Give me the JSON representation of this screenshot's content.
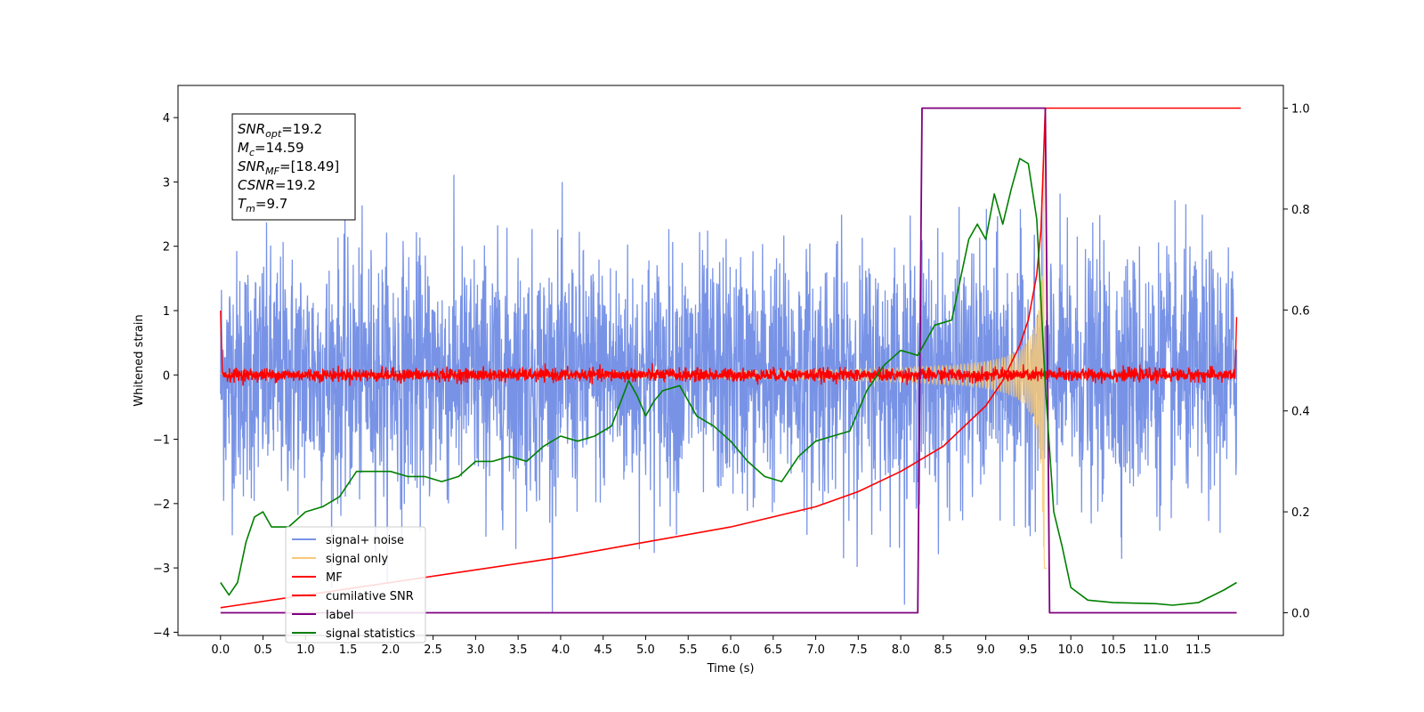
{
  "chart_data": {
    "type": "line",
    "title": "",
    "xlabel": "Time (s)",
    "ylabel": "Whitened strain",
    "xlim": [
      -0.5,
      12.5
    ],
    "ylim": [
      -4.05,
      4.5
    ],
    "y2lim": [
      -0.045,
      1.045
    ],
    "xticks": [
      "0.0",
      "0.5",
      "1.0",
      "1.5",
      "2.0",
      "2.5",
      "3.0",
      "3.5",
      "4.0",
      "4.5",
      "5.0",
      "5.5",
      "6.0",
      "6.5",
      "7.0",
      "7.5",
      "8.0",
      "8.5",
      "9.0",
      "9.5",
      "10.0",
      "10.5",
      "11.0",
      "11.5"
    ],
    "yticks": [
      "4",
      "3",
      "2",
      "1",
      "0",
      "−1",
      "−2",
      "−3",
      "−4"
    ],
    "y2ticks": [
      "1.0",
      "0.8",
      "0.6",
      "0.4",
      "0.2",
      "0.0"
    ],
    "grid": false,
    "legend_position": "lower-left",
    "annotation_lines": [
      {
        "sym": "SNR",
        "sub": "opt",
        "val": "=19.2"
      },
      {
        "sym": "M",
        "sub": "c",
        "val": "=14.59"
      },
      {
        "sym": "SNR",
        "sub": "MF",
        "val": "=[18.49]"
      },
      {
        "sym": "CSNR",
        "sub": "",
        "val": "=19.2"
      },
      {
        "sym": "T",
        "sub": "m",
        "val": "=9.7"
      }
    ],
    "series": [
      {
        "name": "signal+ noise",
        "color": "#7893e6",
        "description": "white noise, std ~1"
      },
      {
        "name": "signal only",
        "color": "#f6c978",
        "chirp_merger_time": 9.7,
        "peak_amplitude": 3.6
      },
      {
        "name": "MF",
        "color": "#ff0000",
        "baseline": 0.0,
        "noise": 0.05
      },
      {
        "name": "cumilative SNR",
        "color": "#ff0000",
        "axis": "right",
        "x": [
          0.0,
          1.0,
          2.0,
          3.0,
          4.0,
          5.0,
          6.0,
          7.0,
          7.5,
          8.0,
          8.5,
          9.0,
          9.2,
          9.4,
          9.5,
          9.6,
          9.65,
          9.7,
          12.0
        ],
        "y": [
          0.01,
          0.035,
          0.06,
          0.085,
          0.11,
          0.14,
          0.17,
          0.21,
          0.24,
          0.28,
          0.33,
          0.41,
          0.46,
          0.53,
          0.58,
          0.67,
          0.76,
          1.0,
          1.0
        ]
      },
      {
        "name": "label",
        "color": "#800080",
        "axis": "right",
        "x": [
          0.0,
          8.2,
          8.25,
          9.7,
          9.75,
          11.95
        ],
        "y": [
          0.0,
          0.0,
          1.0,
          1.0,
          0.0,
          0.0
        ]
      },
      {
        "name": "signal statistics",
        "color": "#008000",
        "axis": "right",
        "x": [
          0.0,
          0.1,
          0.2,
          0.3,
          0.4,
          0.5,
          0.6,
          0.8,
          1.0,
          1.2,
          1.4,
          1.6,
          1.8,
          2.0,
          2.2,
          2.4,
          2.6,
          2.8,
          3.0,
          3.2,
          3.4,
          3.6,
          3.8,
          4.0,
          4.2,
          4.4,
          4.6,
          4.8,
          4.9,
          5.0,
          5.1,
          5.2,
          5.4,
          5.6,
          5.8,
          6.0,
          6.2,
          6.4,
          6.6,
          6.8,
          7.0,
          7.2,
          7.4,
          7.6,
          7.8,
          8.0,
          8.2,
          8.4,
          8.6,
          8.8,
          8.9,
          9.0,
          9.1,
          9.2,
          9.3,
          9.4,
          9.5,
          9.6,
          9.7,
          9.8,
          9.9,
          10.0,
          10.2,
          10.5,
          11.0,
          11.2,
          11.5,
          11.8,
          11.95
        ],
        "y": [
          0.06,
          0.035,
          0.06,
          0.14,
          0.19,
          0.2,
          0.17,
          0.17,
          0.2,
          0.21,
          0.23,
          0.28,
          0.28,
          0.28,
          0.27,
          0.27,
          0.26,
          0.27,
          0.3,
          0.3,
          0.31,
          0.3,
          0.33,
          0.35,
          0.34,
          0.35,
          0.37,
          0.46,
          0.43,
          0.39,
          0.42,
          0.44,
          0.45,
          0.39,
          0.37,
          0.34,
          0.3,
          0.27,
          0.26,
          0.31,
          0.34,
          0.35,
          0.36,
          0.44,
          0.49,
          0.52,
          0.51,
          0.57,
          0.58,
          0.74,
          0.77,
          0.74,
          0.83,
          0.77,
          0.84,
          0.9,
          0.89,
          0.78,
          0.45,
          0.2,
          0.13,
          0.05,
          0.025,
          0.02,
          0.018,
          0.015,
          0.02,
          0.045,
          0.06
        ]
      }
    ]
  }
}
